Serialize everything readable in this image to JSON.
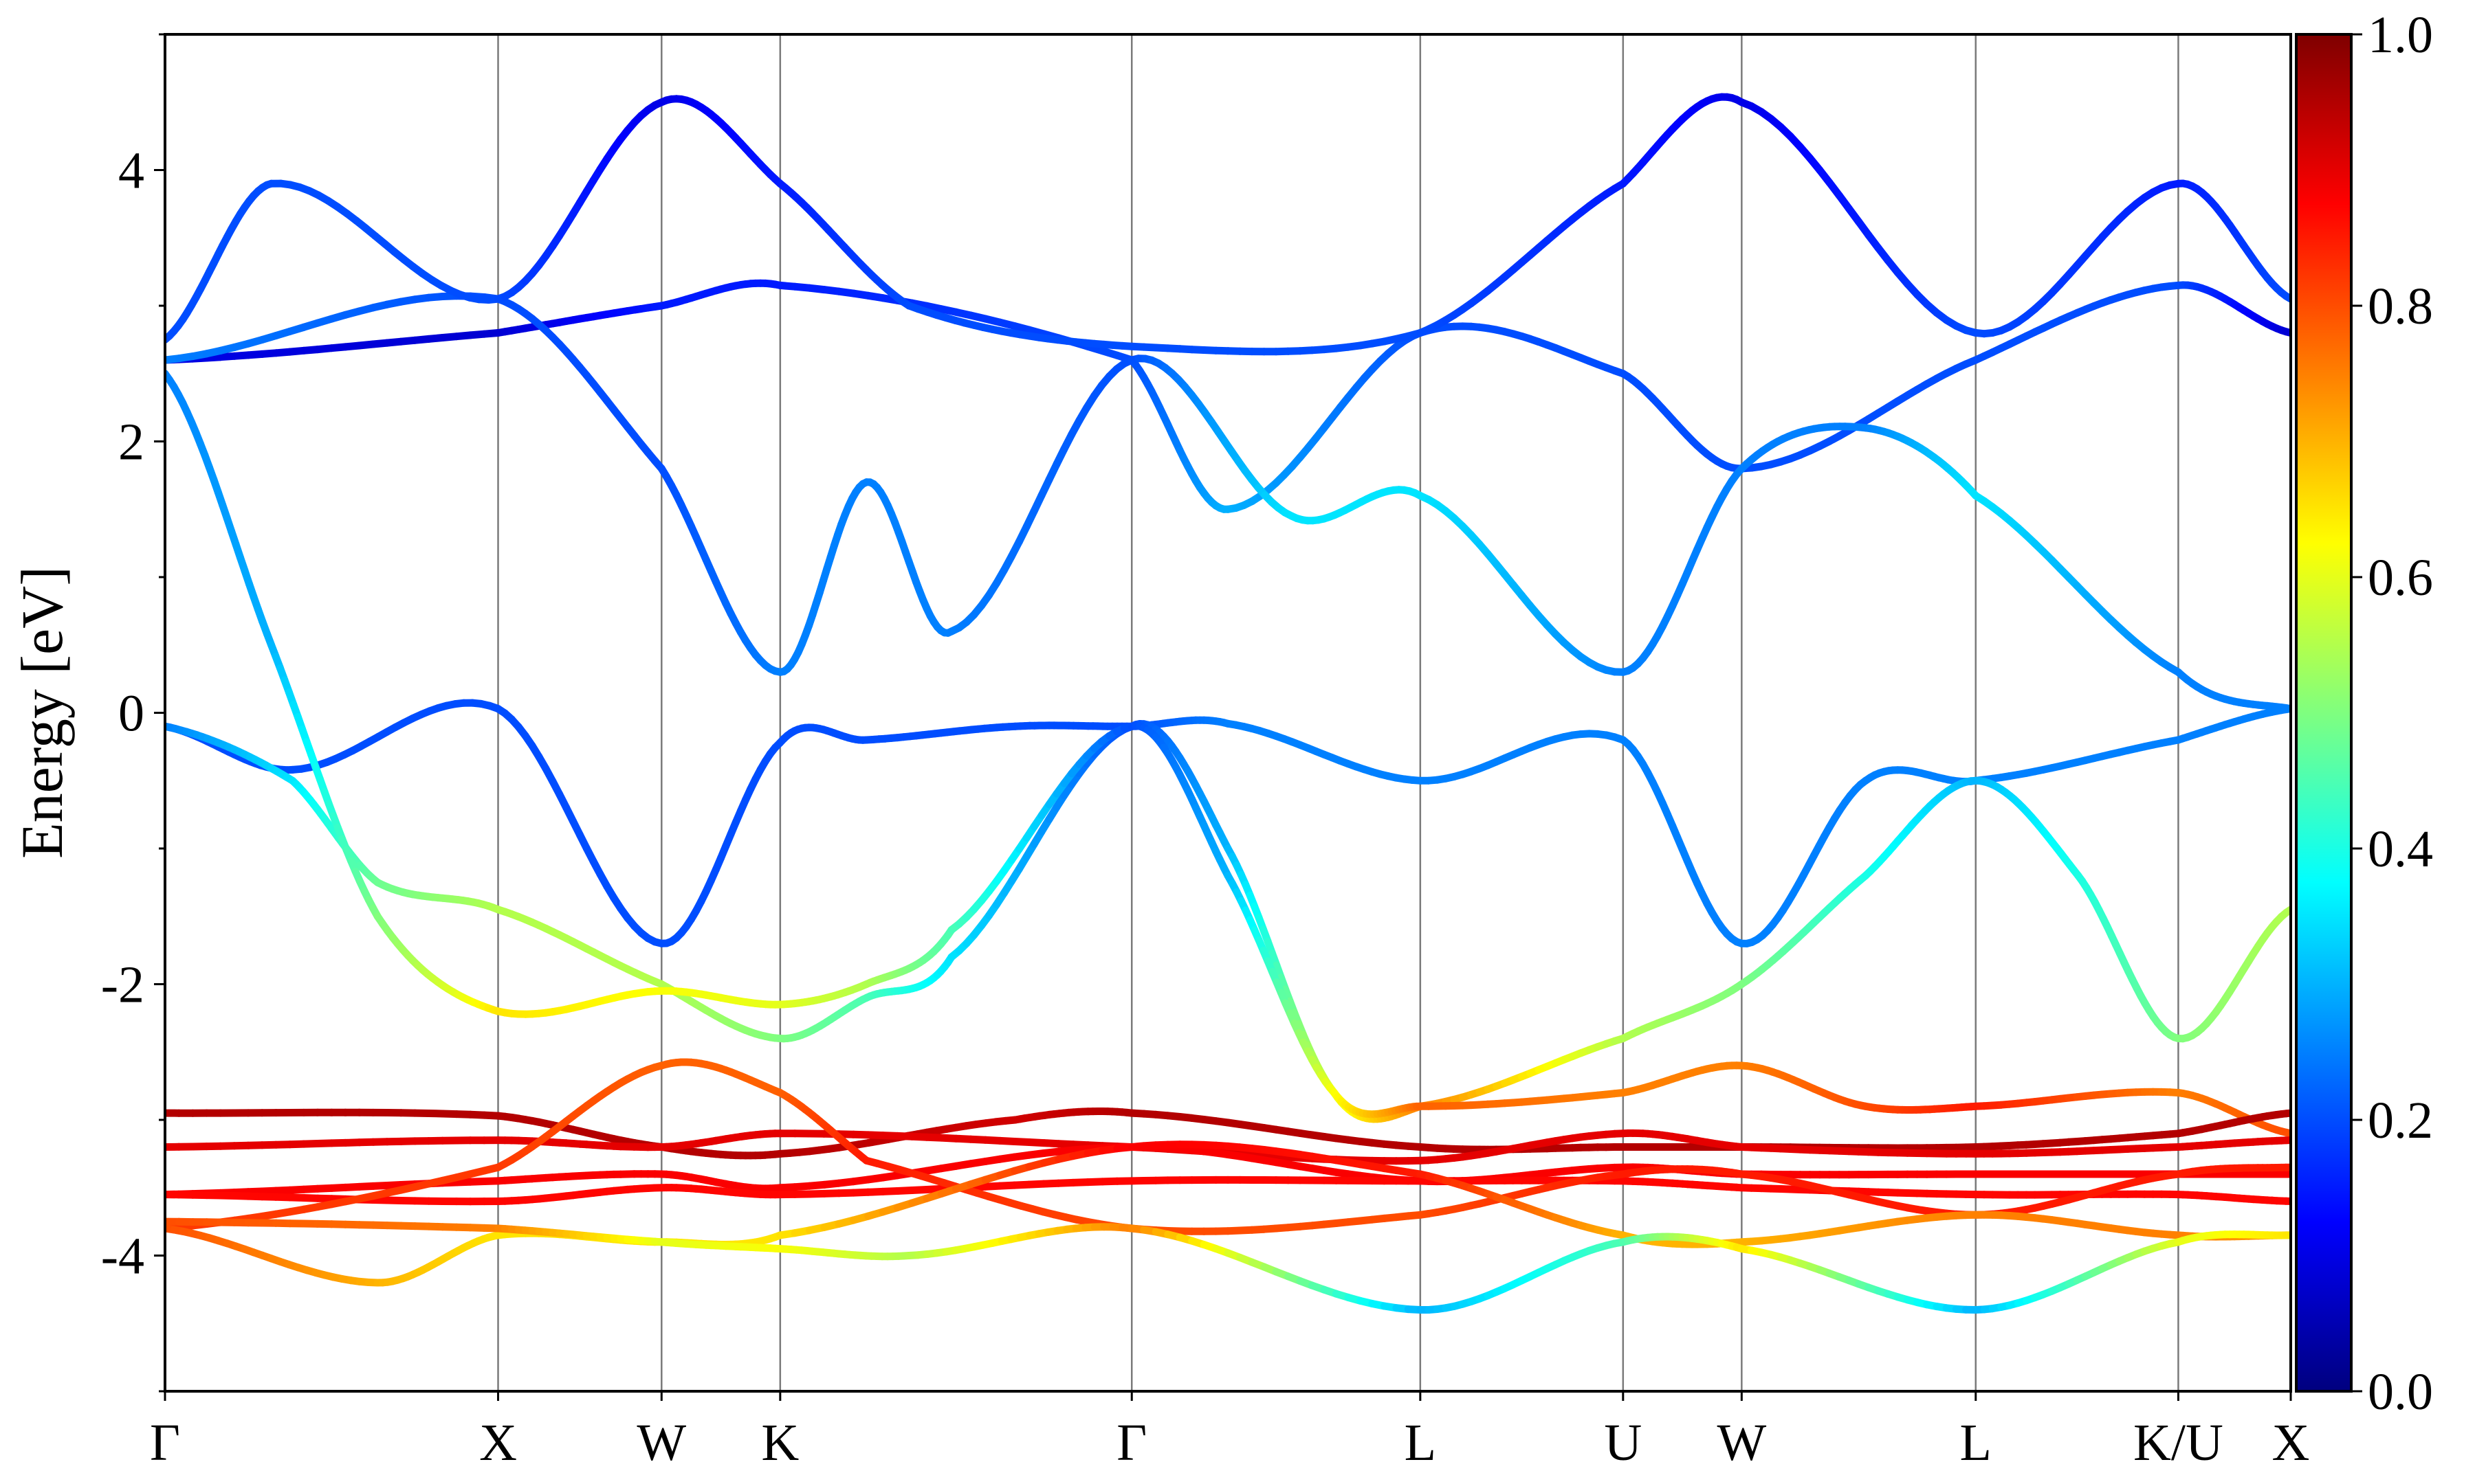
{
  "chart_data": {
    "type": "line",
    "ylabel": "Energy [eV]",
    "ylim": [
      -5,
      5
    ],
    "yticks": [
      -4,
      -2,
      0,
      2,
      4
    ],
    "ytick_labels": [
      "-4",
      "-2",
      "0",
      "2",
      "4"
    ],
    "xlim": [
      0,
      1
    ],
    "kpoints": [
      {
        "label": "Γ",
        "x": 0.0
      },
      {
        "label": "X",
        "x": 0.1567
      },
      {
        "label": "W",
        "x": 0.2336
      },
      {
        "label": "K",
        "x": 0.2894
      },
      {
        "label": "Γ",
        "x": 0.4548
      },
      {
        "label": "L",
        "x": 0.5905
      },
      {
        "label": "U",
        "x": 0.6859
      },
      {
        "label": "W",
        "x": 0.7417
      },
      {
        "label": "L",
        "x": 0.8518
      },
      {
        "label": "K/U",
        "x": 0.9471
      },
      {
        "label": "X",
        "x": 1.0
      }
    ],
    "grid": "vertical lines at high-symmetry points",
    "colormap": "jet",
    "colorbar": {
      "range": [
        0,
        1
      ],
      "ticks": [
        0.0,
        0.2,
        0.4,
        0.6,
        0.8,
        1.0
      ],
      "tick_labels": [
        "0.0",
        "0.2",
        "0.4",
        "0.6",
        "0.8",
        "1.0"
      ],
      "placement": "right"
    },
    "series": [
      {
        "points": [
          [
            0.0,
            -0.1,
            0.2
          ],
          [
            0.06,
            -0.42,
            0.2
          ],
          [
            0.1567,
            0.03,
            0.2
          ],
          [
            0.2336,
            -1.7,
            0.2
          ],
          [
            0.2894,
            -0.22,
            0.2
          ],
          [
            0.33,
            -0.2,
            0.2
          ],
          [
            0.4,
            -0.1,
            0.2
          ],
          [
            0.4548,
            -0.1,
            0.2
          ],
          [
            0.5,
            -0.08,
            0.25
          ],
          [
            0.5905,
            -0.5,
            0.25
          ],
          [
            0.6859,
            -0.2,
            0.25
          ],
          [
            0.7417,
            -1.7,
            0.25
          ],
          [
            0.8,
            -0.5,
            0.25
          ],
          [
            0.8518,
            -0.5,
            0.25
          ],
          [
            0.9471,
            -0.2,
            0.25
          ],
          [
            1.0,
            0.03,
            0.25
          ]
        ]
      },
      {
        "points": [
          [
            0.0,
            -0.1,
            0.25
          ],
          [
            0.06,
            -0.5,
            0.35
          ],
          [
            0.1,
            -1.25,
            0.48
          ],
          [
            0.1567,
            -1.45,
            0.55
          ],
          [
            0.2336,
            -2.0,
            0.55
          ],
          [
            0.2894,
            -2.4,
            0.5
          ],
          [
            0.33,
            -2.1,
            0.45
          ],
          [
            0.37,
            -1.8,
            0.35
          ],
          [
            0.4548,
            -0.1,
            0.2
          ],
          [
            0.5,
            -1.0,
            0.3
          ],
          [
            0.55,
            -2.8,
            0.6
          ],
          [
            0.5905,
            -2.9,
            0.75
          ],
          [
            0.6859,
            -2.4,
            0.55
          ],
          [
            0.7417,
            -2.0,
            0.5
          ],
          [
            0.8,
            -1.2,
            0.4
          ],
          [
            0.8518,
            -0.5,
            0.3
          ],
          [
            0.9,
            -1.2,
            0.4
          ],
          [
            0.9471,
            -2.4,
            0.5
          ],
          [
            1.0,
            -1.45,
            0.55
          ]
        ]
      },
      {
        "points": [
          [
            0.0,
            2.5,
            0.25
          ],
          [
            0.05,
            0.5,
            0.3
          ],
          [
            0.1,
            -1.5,
            0.5
          ],
          [
            0.1567,
            -2.2,
            0.65
          ],
          [
            0.2336,
            -2.05,
            0.62
          ],
          [
            0.2894,
            -2.15,
            0.6
          ],
          [
            0.33,
            -2.0,
            0.55
          ],
          [
            0.37,
            -1.6,
            0.45
          ],
          [
            0.4548,
            -0.1,
            0.2
          ],
          [
            0.5,
            -1.2,
            0.3
          ],
          [
            0.55,
            -2.8,
            0.62
          ],
          [
            0.5905,
            -2.9,
            0.78
          ],
          [
            0.6859,
            -2.8,
            0.75
          ],
          [
            0.7417,
            -2.6,
            0.75
          ],
          [
            0.8,
            -2.9,
            0.8
          ],
          [
            0.8518,
            -2.9,
            0.85
          ],
          [
            0.9471,
            -2.8,
            0.75
          ],
          [
            1.0,
            -3.1,
            0.8
          ]
        ]
      },
      {
        "points": [
          [
            0.0,
            -2.95,
            0.95
          ],
          [
            0.1567,
            -2.97,
            0.95
          ],
          [
            0.2336,
            -3.2,
            0.95
          ],
          [
            0.2894,
            -3.25,
            0.95
          ],
          [
            0.4,
            -3.0,
            0.92
          ],
          [
            0.4548,
            -2.95,
            0.95
          ],
          [
            0.5905,
            -3.2,
            0.95
          ],
          [
            0.6859,
            -3.2,
            0.95
          ],
          [
            0.7417,
            -3.2,
            0.95
          ],
          [
            0.8518,
            -3.2,
            0.95
          ],
          [
            0.9471,
            -3.1,
            0.95
          ],
          [
            1.0,
            -2.95,
            0.95
          ]
        ]
      },
      {
        "points": [
          [
            0.0,
            -3.2,
            0.9
          ],
          [
            0.1567,
            -3.15,
            0.9
          ],
          [
            0.2336,
            -3.2,
            0.9
          ],
          [
            0.2894,
            -3.1,
            0.9
          ],
          [
            0.4548,
            -3.2,
            0.9
          ],
          [
            0.5905,
            -3.3,
            0.9
          ],
          [
            0.6859,
            -3.1,
            0.9
          ],
          [
            0.7417,
            -3.2,
            0.9
          ],
          [
            0.8518,
            -3.25,
            0.9
          ],
          [
            0.9471,
            -3.2,
            0.9
          ],
          [
            1.0,
            -3.15,
            0.9
          ]
        ]
      },
      {
        "points": [
          [
            0.0,
            -3.55,
            0.88
          ],
          [
            0.1567,
            -3.45,
            0.88
          ],
          [
            0.2336,
            -3.4,
            0.88
          ],
          [
            0.2894,
            -3.5,
            0.88
          ],
          [
            0.4548,
            -3.2,
            0.88
          ],
          [
            0.5905,
            -3.45,
            0.88
          ],
          [
            0.6859,
            -3.35,
            0.88
          ],
          [
            0.7417,
            -3.4,
            0.88
          ],
          [
            0.8518,
            -3.4,
            0.88
          ],
          [
            0.9471,
            -3.4,
            0.88
          ],
          [
            1.0,
            -3.4,
            0.88
          ]
        ]
      },
      {
        "points": [
          [
            0.0,
            -3.55,
            0.87
          ],
          [
            0.1567,
            -3.6,
            0.87
          ],
          [
            0.2336,
            -3.5,
            0.87
          ],
          [
            0.2894,
            -3.55,
            0.87
          ],
          [
            0.4548,
            -3.45,
            0.87
          ],
          [
            0.5905,
            -3.45,
            0.87
          ],
          [
            0.6859,
            -3.45,
            0.87
          ],
          [
            0.7417,
            -3.5,
            0.87
          ],
          [
            0.8518,
            -3.55,
            0.87
          ],
          [
            0.9471,
            -3.55,
            0.87
          ],
          [
            1.0,
            -3.6,
            0.87
          ]
        ]
      },
      {
        "points": [
          [
            0.0,
            -3.8,
            0.82
          ],
          [
            0.1567,
            -3.35,
            0.82
          ],
          [
            0.2336,
            -2.6,
            0.78
          ],
          [
            0.2894,
            -2.8,
            0.78
          ],
          [
            0.33,
            -3.3,
            0.85
          ],
          [
            0.4548,
            -3.8,
            0.8
          ],
          [
            0.5905,
            -3.7,
            0.8
          ],
          [
            0.6859,
            -3.4,
            0.85
          ],
          [
            0.7417,
            -3.4,
            0.85
          ],
          [
            0.8518,
            -3.7,
            0.85
          ],
          [
            0.9471,
            -3.4,
            0.85
          ],
          [
            1.0,
            -3.35,
            0.85
          ]
        ]
      },
      {
        "points": [
          [
            0.0,
            -3.8,
            0.8
          ],
          [
            0.1,
            -4.2,
            0.7
          ],
          [
            0.1567,
            -3.85,
            0.65
          ],
          [
            0.2336,
            -3.9,
            0.65
          ],
          [
            0.2894,
            -3.85,
            0.65
          ],
          [
            0.4548,
            -3.2,
            0.88
          ],
          [
            0.5905,
            -3.4,
            0.85
          ],
          [
            0.6859,
            -3.85,
            0.7
          ],
          [
            0.7417,
            -3.9,
            0.7
          ],
          [
            0.8518,
            -3.7,
            0.75
          ],
          [
            0.9471,
            -3.85,
            0.75
          ],
          [
            1.0,
            -3.85,
            0.72
          ]
        ]
      },
      {
        "points": [
          [
            0.0,
            -3.75,
            0.8
          ],
          [
            0.1567,
            -3.8,
            0.75
          ],
          [
            0.2336,
            -3.9,
            0.6
          ],
          [
            0.2894,
            -3.95,
            0.62
          ],
          [
            0.35,
            -4.0,
            0.55
          ],
          [
            0.4548,
            -3.8,
            0.75
          ],
          [
            0.5905,
            -4.4,
            0.3
          ],
          [
            0.6859,
            -3.9,
            0.45
          ],
          [
            0.7417,
            -3.95,
            0.65
          ],
          [
            0.8518,
            -4.4,
            0.3
          ],
          [
            0.9471,
            -3.9,
            0.6
          ],
          [
            1.0,
            -3.85,
            0.65
          ]
        ]
      },
      {
        "points": [
          [
            0.0,
            2.6,
            0.1
          ],
          [
            0.1567,
            2.8,
            0.08
          ],
          [
            0.2336,
            3.0,
            0.15
          ],
          [
            0.2894,
            3.15,
            0.15
          ],
          [
            0.4548,
            2.6,
            0.2
          ],
          [
            0.5,
            1.5,
            0.3
          ],
          [
            0.5905,
            2.8,
            0.2
          ],
          [
            0.6859,
            2.5,
            0.2
          ],
          [
            0.7417,
            1.8,
            0.2
          ],
          [
            0.8518,
            2.6,
            0.2
          ],
          [
            0.9471,
            3.15,
            0.2
          ],
          [
            1.0,
            2.8,
            0.08
          ]
        ]
      },
      {
        "points": [
          [
            0.0,
            2.6,
            0.25
          ],
          [
            0.1567,
            3.05,
            0.2
          ],
          [
            0.2336,
            1.8,
            0.2
          ],
          [
            0.2894,
            0.3,
            0.25
          ],
          [
            0.33,
            1.7,
            0.25
          ],
          [
            0.37,
            0.6,
            0.25
          ],
          [
            0.4548,
            2.6,
            0.2
          ],
          [
            0.53,
            1.45,
            0.35
          ],
          [
            0.5905,
            1.6,
            0.35
          ],
          [
            0.6859,
            0.3,
            0.25
          ],
          [
            0.7417,
            1.8,
            0.25
          ],
          [
            0.8,
            2.1,
            0.25
          ],
          [
            0.8518,
            1.6,
            0.35
          ],
          [
            0.9471,
            0.3,
            0.25
          ],
          [
            1.0,
            0.03,
            0.25
          ]
        ]
      },
      {
        "points": [
          [
            0.0,
            2.75,
            0.2
          ],
          [
            0.05,
            3.9,
            0.2
          ],
          [
            0.1567,
            3.05,
            0.2
          ],
          [
            0.2336,
            4.5,
            0.1
          ],
          [
            0.2894,
            3.9,
            0.15
          ],
          [
            0.35,
            3.0,
            0.2
          ],
          [
            0.4548,
            2.7,
            0.2
          ],
          [
            0.5905,
            2.8,
            0.2
          ],
          [
            0.6859,
            3.9,
            0.15
          ],
          [
            0.7417,
            4.5,
            0.1
          ],
          [
            0.8518,
            2.8,
            0.2
          ],
          [
            0.9471,
            3.9,
            0.15
          ],
          [
            1.0,
            3.05,
            0.2
          ]
        ]
      }
    ]
  }
}
